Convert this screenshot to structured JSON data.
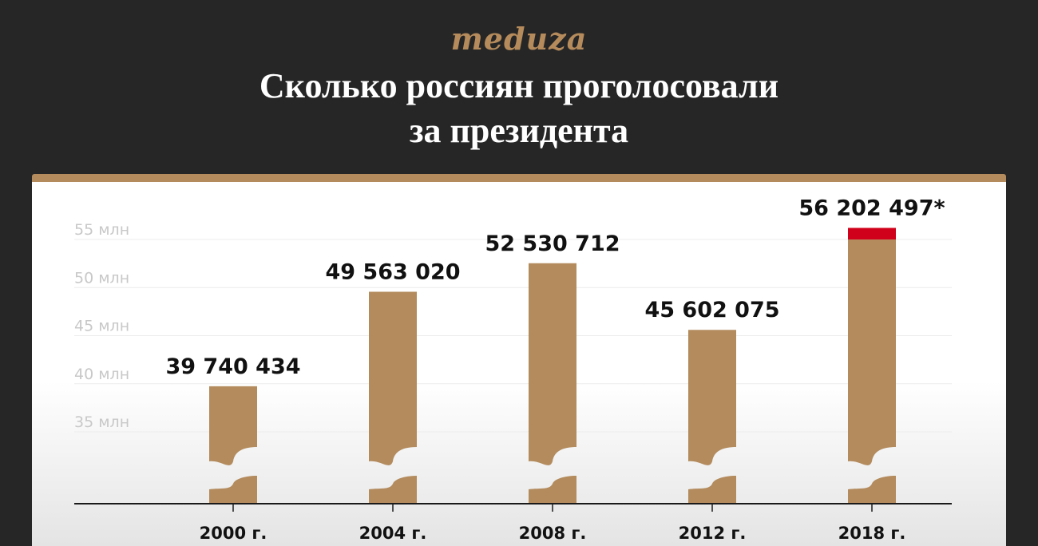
{
  "brand": {
    "logo": "meduza"
  },
  "header": {
    "title_line1": "Сколько россиян проголосовали",
    "title_line2": "за президента"
  },
  "colors": {
    "bar": "#b38b5d",
    "highlight": "#d0021b",
    "background": "#262626",
    "panel": "#ffffff"
  },
  "chart_data": {
    "type": "bar",
    "title": "Сколько россиян проголосовали за президента",
    "categories": [
      "2000 г.",
      "2004 г.",
      "2008 г.",
      "2012 г.",
      "2018 г."
    ],
    "values": [
      39740434,
      49563020,
      52530712,
      45602075,
      56202497
    ],
    "value_labels": [
      "39 740 434",
      "49 563 020",
      "52 530 712",
      "45 602 075",
      "56 202 497*"
    ],
    "y_ticks": [
      35000000,
      40000000,
      45000000,
      50000000,
      55000000
    ],
    "y_tick_labels": [
      "35 млн",
      "40 млн",
      "45 млн",
      "50 млн",
      "55 млн"
    ],
    "axis_break": true,
    "highlight_above": 55000000,
    "grid": true
  }
}
